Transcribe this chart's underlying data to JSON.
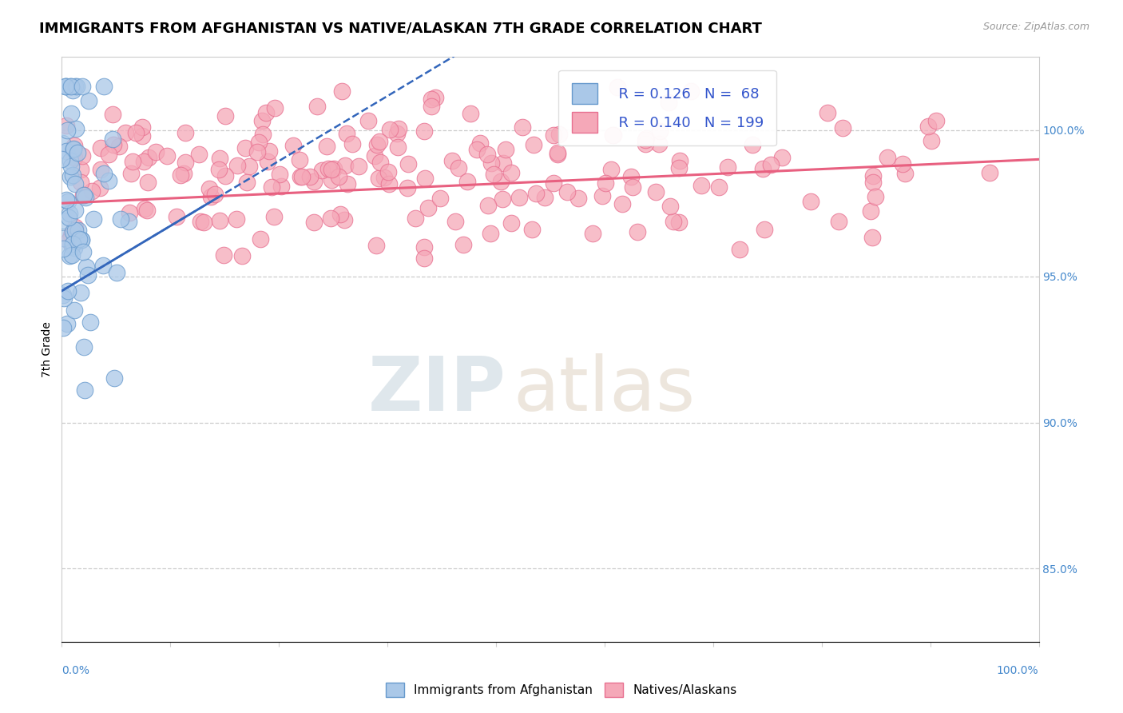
{
  "title": "IMMIGRANTS FROM AFGHANISTAN VS NATIVE/ALASKAN 7TH GRADE CORRELATION CHART",
  "source": "Source: ZipAtlas.com",
  "ylabel": "7th Grade",
  "xmin": 0.0,
  "xmax": 1.0,
  "ymin": 0.825,
  "ymax": 1.025,
  "right_yticks": [
    0.85,
    0.9,
    0.95,
    1.0
  ],
  "right_yticklabels": [
    "85.0%",
    "90.0%",
    "95.0%",
    "100.0%"
  ],
  "blue_R": 0.126,
  "blue_N": 68,
  "pink_R": 0.14,
  "pink_N": 199,
  "blue_color": "#aac8e8",
  "pink_color": "#f5a8b8",
  "blue_edge_color": "#6699cc",
  "pink_edge_color": "#e87090",
  "blue_trend_color": "#3366bb",
  "pink_trend_color": "#e86080",
  "legend_color": "#3355cc",
  "title_fontsize": 13,
  "axis_label_fontsize": 10,
  "tick_label_fontsize": 10,
  "legend_fontsize": 13
}
